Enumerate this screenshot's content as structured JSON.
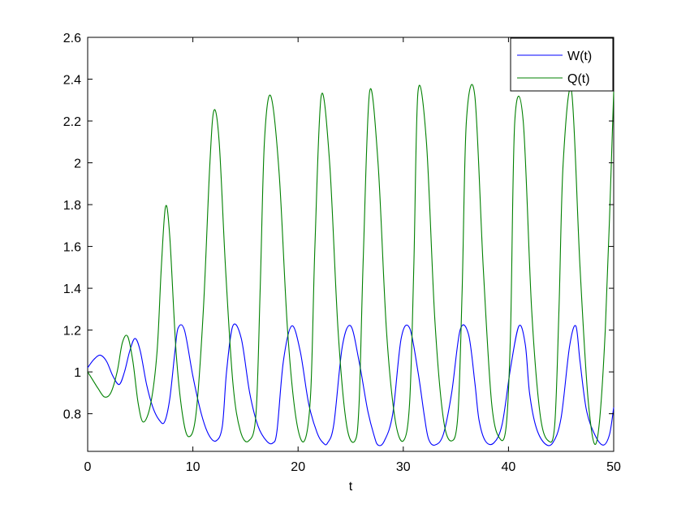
{
  "chart_data": {
    "type": "line",
    "title": "",
    "xlabel": "t",
    "ylabel": "",
    "xlim": [
      0,
      50
    ],
    "ylim": [
      0.62,
      2.6
    ],
    "xticks": [
      0,
      10,
      20,
      30,
      40,
      50
    ],
    "yticks": [
      0.8,
      1,
      1.2,
      1.4,
      1.6,
      1.8,
      2,
      2.2,
      2.4,
      2.6
    ],
    "xtick_labels": [
      "0",
      "10",
      "20",
      "30",
      "40",
      "50"
    ],
    "ytick_labels": [
      "0.8",
      "1",
      "1.2",
      "1.4",
      "1.6",
      "1.8",
      "2",
      "2.2",
      "2.4",
      "2.6"
    ],
    "grid": false,
    "legend": "top-right",
    "series": [
      {
        "name": "W(t)",
        "color": "#0000ff",
        "x": [
          0,
          0.6,
          1.2,
          1.8,
          2.4,
          3.0,
          3.5,
          4.0,
          4.5,
          5.0,
          5.6,
          6.2,
          6.8,
          7.3,
          7.8,
          8.3,
          8.6,
          9.2,
          10.0,
          10.8,
          11.5,
          12.2,
          12.8,
          13.2,
          13.8,
          14.6,
          15.4,
          16.2,
          17.0,
          17.6,
          18.0,
          18.6,
          19.4,
          20.2,
          21.0,
          21.8,
          22.4,
          22.8,
          23.4,
          24.2,
          25.0,
          25.8,
          26.6,
          27.2,
          27.6,
          28.2,
          29.0,
          29.8,
          30.6,
          31.4,
          32.0,
          32.4,
          33.0,
          33.8,
          34.6,
          35.4,
          36.2,
          36.8,
          37.2,
          37.8,
          38.6,
          39.4,
          40.2,
          41.0,
          41.6,
          42.0,
          42.6,
          43.4,
          44.2,
          45.0,
          45.8,
          46.4,
          46.8,
          47.4,
          48.2,
          49.0,
          49.6,
          50.0
        ],
        "values": [
          1.02,
          1.06,
          1.08,
          1.05,
          0.98,
          0.94,
          1.0,
          1.1,
          1.16,
          1.1,
          0.94,
          0.83,
          0.77,
          0.76,
          0.87,
          1.1,
          1.21,
          1.2,
          0.98,
          0.8,
          0.7,
          0.67,
          0.74,
          1.0,
          1.22,
          1.16,
          0.9,
          0.74,
          0.67,
          0.66,
          0.72,
          1.05,
          1.22,
          1.1,
          0.85,
          0.71,
          0.66,
          0.66,
          0.75,
          1.12,
          1.22,
          1.05,
          0.82,
          0.7,
          0.65,
          0.67,
          0.8,
          1.16,
          1.21,
          1.0,
          0.79,
          0.68,
          0.65,
          0.7,
          0.9,
          1.2,
          1.18,
          0.95,
          0.77,
          0.67,
          0.66,
          0.75,
          1.02,
          1.22,
          1.13,
          0.9,
          0.74,
          0.66,
          0.66,
          0.78,
          1.12,
          1.22,
          1.05,
          0.82,
          0.7,
          0.65,
          0.7,
          0.83
        ]
      },
      {
        "name": "Q(t)",
        "color": "#008000",
        "x": [
          0,
          0.5,
          1.0,
          1.6,
          2.2,
          2.8,
          3.3,
          3.8,
          4.3,
          4.8,
          5.3,
          6.0,
          6.6,
          7.0,
          7.4,
          7.8,
          8.4,
          9.0,
          9.6,
          10.3,
          11.0,
          11.6,
          12.0,
          12.5,
          13.1,
          13.8,
          14.5,
          15.3,
          16.0,
          16.4,
          16.8,
          17.4,
          18.2,
          19.0,
          19.8,
          20.6,
          21.2,
          21.6,
          22.2,
          23.0,
          23.8,
          24.6,
          25.4,
          25.8,
          26.2,
          26.8,
          27.6,
          28.4,
          29.2,
          30.0,
          30.6,
          31.0,
          31.4,
          32.2,
          33.0,
          33.8,
          34.6,
          35.2,
          35.6,
          36.0,
          36.8,
          37.6,
          38.4,
          39.2,
          39.8,
          40.2,
          40.6,
          41.4,
          42.2,
          43.0,
          43.8,
          44.4,
          44.8,
          45.2,
          46.0,
          46.8,
          47.6,
          48.4,
          49.2,
          50.0
        ],
        "values": [
          1.0,
          0.96,
          0.92,
          0.88,
          0.9,
          1.0,
          1.14,
          1.17,
          1.05,
          0.85,
          0.76,
          0.85,
          1.1,
          1.5,
          1.79,
          1.65,
          1.1,
          0.8,
          0.69,
          0.8,
          1.3,
          1.98,
          2.25,
          2.1,
          1.5,
          0.95,
          0.72,
          0.67,
          0.8,
          1.4,
          2.1,
          2.32,
          1.95,
          1.2,
          0.78,
          0.67,
          0.9,
          1.6,
          2.32,
          2.0,
          1.2,
          0.75,
          0.67,
          0.85,
          1.55,
          2.34,
          2.0,
          1.2,
          0.78,
          0.67,
          0.85,
          1.5,
          2.34,
          2.1,
          1.25,
          0.78,
          0.67,
          0.8,
          1.4,
          2.2,
          2.32,
          1.5,
          0.85,
          0.68,
          0.75,
          1.2,
          2.2,
          2.2,
          1.3,
          0.8,
          0.67,
          0.75,
          1.3,
          2.0,
          2.34,
          1.5,
          0.85,
          0.67,
          1.2,
          2.34
        ]
      }
    ]
  }
}
